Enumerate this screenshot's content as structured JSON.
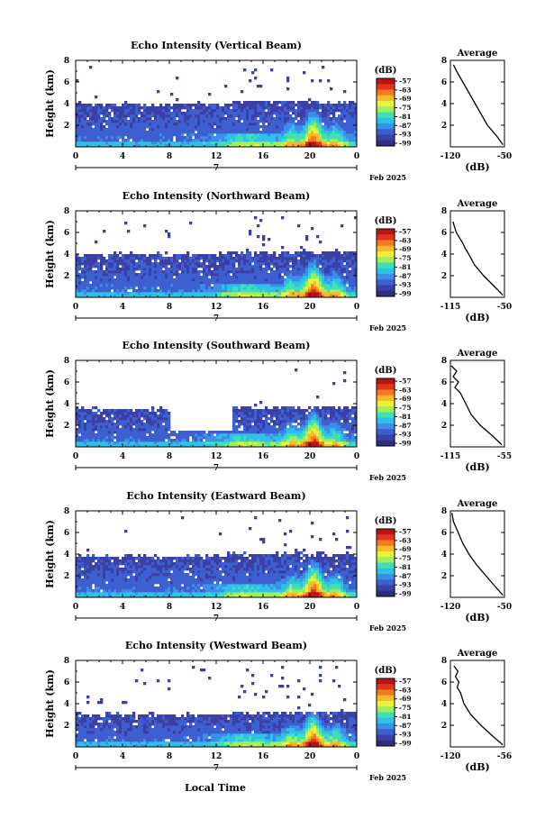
{
  "figure": {
    "xaxis_label": "Local Time",
    "date_label": "7",
    "month_label": "Feb 2025"
  },
  "colorbar": {
    "unit_label": "(dB)",
    "ticks": [
      "-57",
      "-63",
      "-69",
      "-75",
      "-81",
      "-87",
      "-93",
      "-99"
    ],
    "colors": [
      "#2d2f7c",
      "#3b40a6",
      "#3d5fd0",
      "#3c8fe6",
      "#2fc1e8",
      "#3fe0b8",
      "#9ef05a",
      "#e8f23a",
      "#f6b92c",
      "#f47a22",
      "#e0341c",
      "#b81414"
    ]
  },
  "chart_data": [
    {
      "type": "heatmap",
      "title": "Echo Intensity (Vertical Beam)",
      "ylabel": "Height (km)",
      "xlim": [
        0,
        24
      ],
      "ylim": [
        0,
        8
      ],
      "xticks": [
        "0",
        "4",
        "8",
        "12",
        "16",
        "20",
        "0"
      ],
      "yticks": [
        "2",
        "4",
        "6",
        "8"
      ],
      "echo_top_km": 4.0,
      "average_profile": {
        "title": "Average",
        "xlabel": "(dB)",
        "xlim": [
          -120,
          -50
        ],
        "ylim": [
          0,
          8
        ],
        "xticks": [
          "-120",
          "-50"
        ],
        "yticks": [
          "2",
          "4",
          "6",
          "8"
        ],
        "height_km": [
          0.2,
          1,
          2,
          3,
          4,
          5,
          6,
          7,
          7.6
        ],
        "intensity_db": [
          -52,
          -60,
          -72,
          -80,
          -88,
          -96,
          -104,
          -112,
          -116
        ]
      }
    },
    {
      "type": "heatmap",
      "title": "Echo Intensity (Northward Beam)",
      "ylabel": "Height (km)",
      "xlim": [
        0,
        24
      ],
      "ylim": [
        0,
        8
      ],
      "xticks": [
        "0",
        "4",
        "8",
        "12",
        "16",
        "20",
        "0"
      ],
      "yticks": [
        "2",
        "4",
        "6",
        "8"
      ],
      "echo_top_km": 4.0,
      "average_profile": {
        "title": "Average",
        "xlabel": "(dB)",
        "xlim": [
          -115,
          -50
        ],
        "ylim": [
          0,
          8
        ],
        "xticks": [
          "-115",
          "-50"
        ],
        "yticks": [
          "2",
          "4",
          "6",
          "8"
        ],
        "height_km": [
          0.2,
          1,
          2,
          3,
          4,
          4.5,
          5,
          6,
          7
        ],
        "intensity_db": [
          -52,
          -62,
          -75,
          -86,
          -93,
          -97,
          -100,
          -108,
          -112
        ]
      }
    },
    {
      "type": "heatmap",
      "title": "Echo Intensity (Southward Beam)",
      "ylabel": "Height (km)",
      "xlim": [
        0,
        24
      ],
      "ylim": [
        0,
        8
      ],
      "xticks": [
        "0",
        "4",
        "8",
        "12",
        "16",
        "20",
        "0"
      ],
      "yticks": [
        "2",
        "4",
        "6",
        "8"
      ],
      "echo_top_km": 3.5,
      "average_profile": {
        "title": "Average",
        "xlabel": "(dB)",
        "xlim": [
          -115,
          -55
        ],
        "ylim": [
          0,
          8
        ],
        "xticks": [
          "-115",
          "-55"
        ],
        "yticks": [
          "2",
          "4",
          "6",
          "8"
        ],
        "height_km": [
          0.2,
          1,
          2,
          3,
          4,
          5,
          5.5,
          6,
          6.5,
          7,
          7.5
        ],
        "intensity_db": [
          -58,
          -68,
          -82,
          -92,
          -98,
          -104,
          -110,
          -106,
          -112,
          -108,
          -114
        ]
      }
    },
    {
      "type": "heatmap",
      "title": "Echo Intensity (Eastward Beam)",
      "ylabel": "Height (km)",
      "xlim": [
        0,
        24
      ],
      "ylim": [
        0,
        8
      ],
      "xticks": [
        "0",
        "4",
        "8",
        "12",
        "16",
        "20",
        "0"
      ],
      "yticks": [
        "2",
        "4",
        "6",
        "8"
      ],
      "echo_top_km": 3.8,
      "average_profile": {
        "title": "Average",
        "xlabel": "(dB)",
        "xlim": [
          -120,
          -50
        ],
        "ylim": [
          0,
          8
        ],
        "xticks": [
          "-120",
          "-50"
        ],
        "yticks": [
          "2",
          "4",
          "6",
          "8"
        ],
        "height_km": [
          0.2,
          1,
          2,
          3,
          4,
          5,
          6,
          7,
          7.8
        ],
        "intensity_db": [
          -52,
          -62,
          -74,
          -86,
          -96,
          -104,
          -110,
          -116,
          -118
        ]
      }
    },
    {
      "type": "heatmap",
      "title": "Echo Intensity (Westward Beam)",
      "ylabel": "Height (km)",
      "xlim": [
        0,
        24
      ],
      "ylim": [
        0,
        8
      ],
      "xticks": [
        "0",
        "4",
        "8",
        "12",
        "16",
        "20",
        "0"
      ],
      "yticks": [
        "2",
        "4",
        "6",
        "8"
      ],
      "echo_top_km": 3.0,
      "average_profile": {
        "title": "Average",
        "xlabel": "(dB)",
        "xlim": [
          -120,
          -56
        ],
        "ylim": [
          0,
          8
        ],
        "xticks": [
          "-120",
          "-56"
        ],
        "yticks": [
          "2",
          "4",
          "6",
          "8"
        ],
        "height_km": [
          0.2,
          1,
          2,
          3,
          4,
          5,
          5.5,
          6,
          6.5,
          7,
          7.5
        ],
        "intensity_db": [
          -58,
          -70,
          -84,
          -96,
          -104,
          -108,
          -112,
          -110,
          -114,
          -111,
          -116
        ]
      }
    }
  ]
}
